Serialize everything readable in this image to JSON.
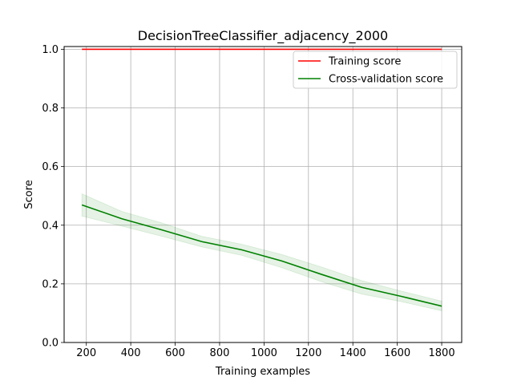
{
  "chart_data": {
    "type": "line",
    "title": "DecisionTreeClassifier_adjacency_2000",
    "xlabel": "Training examples",
    "ylabel": "Score",
    "xlim": [
      100,
      1890
    ],
    "ylim": [
      0.0,
      1.0
    ],
    "xticks": [
      200,
      400,
      600,
      800,
      1000,
      1200,
      1400,
      1600,
      1800
    ],
    "xtick_labels": [
      "200",
      "400",
      "600",
      "800",
      "1000",
      "1200",
      "1400",
      "1600",
      "1800"
    ],
    "yticks": [
      0.0,
      0.2,
      0.4,
      0.6,
      0.8,
      1.0
    ],
    "ytick_labels": [
      "0.0",
      "0.2",
      "0.4",
      "0.6",
      "0.8",
      "1.0"
    ],
    "grid": true,
    "legend_position": "top-right",
    "x": [
      180,
      360,
      540,
      720,
      900,
      1080,
      1260,
      1440,
      1620,
      1800
    ],
    "series": [
      {
        "name": "Training score",
        "color": "#ff0000",
        "values": [
          1.0,
          1.0,
          1.0,
          1.0,
          1.0,
          1.0,
          1.0,
          1.0,
          1.0,
          1.0
        ],
        "lower": [
          1.0,
          1.0,
          1.0,
          1.0,
          1.0,
          1.0,
          1.0,
          1.0,
          1.0,
          1.0
        ],
        "upper": [
          1.0,
          1.0,
          1.0,
          1.0,
          1.0,
          1.0,
          1.0,
          1.0,
          1.0,
          1.0
        ]
      },
      {
        "name": "Cross-validation score",
        "color": "#008000",
        "values": [
          0.469,
          0.422,
          0.384,
          0.344,
          0.316,
          0.278,
          0.232,
          0.188,
          0.157,
          0.124
        ],
        "lower": [
          0.431,
          0.397,
          0.362,
          0.326,
          0.297,
          0.255,
          0.207,
          0.165,
          0.139,
          0.108
        ],
        "upper": [
          0.507,
          0.447,
          0.408,
          0.362,
          0.335,
          0.3,
          0.257,
          0.211,
          0.175,
          0.141
        ]
      }
    ]
  }
}
